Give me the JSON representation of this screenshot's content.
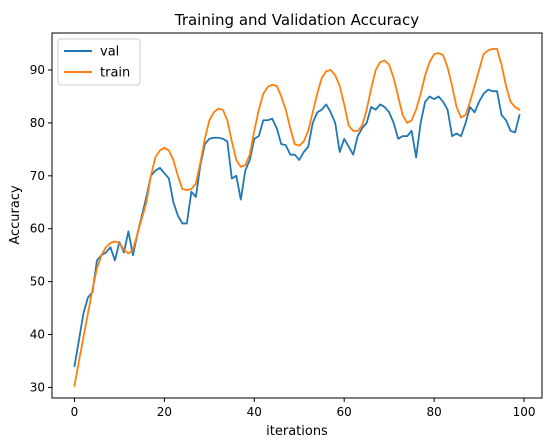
{
  "chart_data": {
    "type": "line",
    "title": "Training and Validation Accuracy",
    "xlabel": "iterations",
    "ylabel": "Accuracy",
    "xlim": [
      -5,
      104
    ],
    "ylim": [
      28,
      97
    ],
    "xticks": [
      0,
      20,
      40,
      60,
      80,
      100
    ],
    "yticks": [
      30,
      40,
      50,
      60,
      70,
      80,
      90
    ],
    "grid": false,
    "legend_position": "top-left",
    "series": [
      {
        "name": "val",
        "color": "#1f77b4",
        "x": [
          0,
          1,
          2,
          3,
          4,
          5,
          6,
          7,
          8,
          9,
          10,
          11,
          12,
          13,
          14,
          15,
          16,
          17,
          18,
          19,
          20,
          21,
          22,
          23,
          24,
          25,
          26,
          27,
          28,
          29,
          30,
          31,
          32,
          33,
          34,
          35,
          36,
          37,
          38,
          39,
          40,
          41,
          42,
          43,
          44,
          45,
          46,
          47,
          48,
          49,
          50,
          51,
          52,
          53,
          54,
          55,
          56,
          57,
          58,
          59,
          60,
          61,
          62,
          63,
          64,
          65,
          66,
          67,
          68,
          69,
          70,
          71,
          72,
          73,
          74,
          75,
          76,
          77,
          78,
          79,
          80,
          81,
          82,
          83,
          84,
          85,
          86,
          87,
          88,
          89,
          90,
          91,
          92,
          93,
          94,
          95,
          96,
          97,
          98,
          99
        ],
        "y": [
          34,
          39,
          44,
          47,
          48,
          54,
          55,
          55.5,
          56.5,
          54,
          57.5,
          55.5,
          59.5,
          55,
          59,
          62.5,
          66,
          70,
          71,
          71.5,
          70.5,
          69.5,
          65,
          62.5,
          61,
          61,
          67,
          66,
          72,
          76,
          77,
          77.2,
          77.2,
          77,
          76.5,
          69.5,
          70,
          65.5,
          71,
          73,
          77,
          77.5,
          80.5,
          80.5,
          80.8,
          79,
          76,
          75.8,
          74,
          74,
          73,
          74.5,
          75.5,
          80,
          82,
          82.5,
          83.5,
          82,
          80,
          74.5,
          77,
          75.5,
          74,
          77.5,
          79,
          80,
          83,
          82.5,
          83.5,
          83,
          82,
          80,
          77,
          77.5,
          77.5,
          78.5,
          73.5,
          80,
          84,
          85,
          84.5,
          85,
          84,
          82.5,
          77.5,
          78,
          77.5,
          80,
          83,
          82,
          84,
          85.5,
          86.3,
          86,
          86,
          81.5,
          80.5,
          78.5,
          78.2,
          81.5
        ]
      },
      {
        "name": "train",
        "color": "#ff7f0e",
        "x": [
          0,
          1,
          2,
          3,
          4,
          5,
          6,
          7,
          8,
          9,
          10,
          11,
          12,
          13,
          14,
          15,
          16,
          17,
          18,
          19,
          20,
          21,
          22,
          23,
          24,
          25,
          26,
          27,
          28,
          29,
          30,
          31,
          32,
          33,
          34,
          35,
          36,
          37,
          38,
          39,
          40,
          41,
          42,
          43,
          44,
          45,
          46,
          47,
          48,
          49,
          50,
          51,
          52,
          53,
          54,
          55,
          56,
          57,
          58,
          59,
          60,
          61,
          62,
          63,
          64,
          65,
          66,
          67,
          68,
          69,
          70,
          71,
          72,
          73,
          74,
          75,
          76,
          77,
          78,
          79,
          80,
          81,
          82,
          83,
          84,
          85,
          86,
          87,
          88,
          89,
          90,
          91,
          92,
          93,
          94,
          95,
          96,
          97,
          98,
          99
        ],
        "y": [
          30.3,
          35,
          39.5,
          44,
          48.5,
          52.5,
          55,
          56.5,
          57.3,
          57.6,
          57.3,
          56,
          55.3,
          56,
          59,
          62,
          65,
          70,
          73.5,
          74.8,
          75.3,
          74.8,
          73,
          70,
          67.5,
          67.3,
          67.5,
          68.5,
          72.5,
          77,
          80.5,
          82,
          82.7,
          82.5,
          80.5,
          76.5,
          73,
          71.7,
          72,
          74,
          78.5,
          82.5,
          85.5,
          86.8,
          87.2,
          87,
          85,
          82.5,
          79,
          76,
          75.7,
          76.5,
          78.5,
          82,
          85.5,
          88.5,
          89.8,
          90,
          89,
          87,
          83.5,
          79.5,
          78.5,
          78.5,
          79.5,
          82.5,
          86.5,
          90,
          91.5,
          91.8,
          91,
          88.5,
          85,
          81.5,
          80,
          80.5,
          82.5,
          85.5,
          89,
          91.5,
          93,
          93.2,
          92.8,
          90.5,
          87,
          83,
          81,
          81.5,
          84,
          87,
          90,
          93,
          93.7,
          94,
          94,
          91,
          87,
          84,
          83,
          82.5
        ]
      }
    ]
  }
}
